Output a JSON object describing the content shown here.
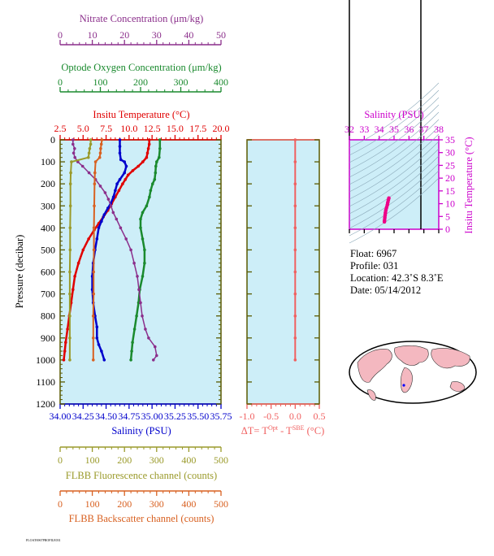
{
  "colors": {
    "nitrate": "#8b2f8b",
    "oxygen": "#1a8a2e",
    "temperature": "#e00000",
    "salinity": "#0000cc",
    "fluorescence": "#9a9a2a",
    "backscatter": "#d86020",
    "delta": "#f06060",
    "panel_bg": "#cdeef8",
    "axis_dark": "#5a5a00",
    "ts_magenta": "#cc00cc",
    "ts_points": "#ee0088",
    "land": "#f4b8c0"
  },
  "axes": {
    "nitrate": {
      "title": "Nitrate Concentration (μm/kg)",
      "ticks": [
        "0",
        "10",
        "20",
        "30",
        "40",
        "50"
      ],
      "range": [
        0,
        50
      ]
    },
    "oxygen": {
      "title": "Optode Oxygen Concentration (μm/kg)",
      "ticks": [
        "0",
        "100",
        "200",
        "300",
        "400"
      ],
      "range": [
        0,
        400
      ]
    },
    "temperature": {
      "title": "Insitu Temperature (°C)",
      "ticks": [
        "2.5",
        "5.0",
        "7.5",
        "10.0",
        "12.5",
        "15.0",
        "17.5",
        "20.0"
      ],
      "range": [
        2.5,
        20.0
      ]
    },
    "pressure": {
      "title": "Pressure (decibar)",
      "ticks": [
        "0",
        "100",
        "200",
        "300",
        "400",
        "500",
        "600",
        "700",
        "800",
        "900",
        "1000",
        "1100",
        "1200"
      ],
      "range": [
        0,
        1200
      ]
    },
    "salinity": {
      "title": "Salinity (PSU)",
      "ticks": [
        "34.00",
        "34.25",
        "34.50",
        "34.75",
        "35.00",
        "35.25",
        "35.50",
        "35.75"
      ],
      "range": [
        34.0,
        35.75
      ]
    },
    "fluorescence": {
      "title": "FLBB Fluorescence channel (counts)",
      "ticks": [
        "0",
        "100",
        "200",
        "300",
        "400",
        "500"
      ],
      "range": [
        0,
        500
      ]
    },
    "backscatter": {
      "title": "FLBB Backscatter channel (counts)",
      "ticks": [
        "0",
        "100",
        "200",
        "300",
        "400",
        "500"
      ],
      "range": [
        0,
        500
      ]
    },
    "delta": {
      "title_prefix": "ΔT= T",
      "sup1": "Opt",
      "mid": " - T",
      "sup2": "SBE",
      "suffix": " (°C)",
      "ticks": [
        "-1.0",
        "-0.5",
        "0.0",
        "0.5"
      ],
      "range": [
        -1.0,
        0.5
      ]
    },
    "ts_salinity": {
      "title": "Salinity (PSU)",
      "ticks": [
        "32",
        "33",
        "34",
        "35",
        "36",
        "37",
        "38"
      ],
      "range": [
        32,
        38
      ]
    },
    "ts_temperature": {
      "title": "Insitu Temperature (°C)",
      "ticks": [
        "0",
        "5",
        "10",
        "15",
        "20",
        "25",
        "30",
        "35"
      ],
      "range": [
        0,
        35
      ]
    }
  },
  "info": {
    "float": "Float:  6967",
    "profile": "Profile:  031",
    "location": "Location:  42.3˚S   8.3˚E",
    "date": "Date:  05/14/2012"
  },
  "footer": "FLOAT6967PROFILE031",
  "chart_data": {
    "type": "line",
    "y_axis": "pressure",
    "ylim": [
      0,
      1200
    ],
    "series": [
      {
        "key": "temperature",
        "pressure": [
          0,
          20,
          40,
          60,
          80,
          100,
          120,
          140,
          160,
          180,
          200,
          230,
          260,
          290,
          320,
          350,
          380,
          410,
          450,
          500,
          560,
          620,
          680,
          740,
          800,
          860,
          920,
          960,
          1000
        ],
        "values": [
          12.2,
          12.2,
          12.1,
          12.0,
          11.9,
          11.5,
          11.0,
          10.4,
          9.9,
          9.6,
          9.3,
          8.9,
          8.5,
          8.1,
          7.7,
          7.2,
          6.7,
          6.2,
          5.6,
          5.0,
          4.5,
          4.1,
          3.9,
          3.7,
          3.5,
          3.3,
          3.1,
          3.0,
          2.9
        ]
      },
      {
        "key": "salinity",
        "pressure": [
          0,
          30,
          60,
          90,
          100,
          120,
          150,
          180,
          200,
          230,
          260,
          290,
          310,
          340,
          370,
          400,
          450,
          500,
          560,
          620,
          680,
          740,
          800,
          850,
          900,
          930,
          960,
          1000
        ],
        "values": [
          34.65,
          34.65,
          34.65,
          34.66,
          34.7,
          34.72,
          34.7,
          34.65,
          34.62,
          34.6,
          34.58,
          34.55,
          34.52,
          34.48,
          34.45,
          34.42,
          34.4,
          34.38,
          34.36,
          34.35,
          34.35,
          34.36,
          34.38,
          34.4,
          34.4,
          34.42,
          34.45,
          34.48
        ]
      },
      {
        "key": "oxygen",
        "pressure": [
          0,
          40,
          80,
          100,
          120,
          150,
          180,
          200,
          230,
          260,
          300,
          330,
          360,
          400,
          450,
          500,
          560,
          620,
          680,
          740,
          800,
          860,
          920,
          960,
          1000
        ],
        "values": [
          248,
          248,
          246,
          240,
          238,
          237,
          235,
          230,
          225,
          222,
          215,
          205,
          200,
          200,
          205,
          210,
          210,
          205,
          198,
          195,
          190,
          185,
          180,
          178,
          176
        ]
      },
      {
        "key": "nitrate",
        "pressure": [
          0,
          20,
          40,
          60,
          80,
          100,
          120,
          150,
          180,
          210,
          240,
          270,
          300,
          330,
          360,
          400,
          450,
          500,
          560,
          620,
          680,
          740,
          800,
          860,
          900,
          940,
          980,
          1000
        ],
        "values": [
          4.0,
          4.0,
          4.5,
          4.2,
          4.6,
          5.5,
          7.0,
          9.0,
          11.0,
          12.5,
          14.0,
          15.0,
          15.8,
          16.5,
          17.5,
          18.8,
          20.5,
          22.0,
          23.0,
          24.0,
          24.5,
          25.0,
          25.5,
          26.5,
          27.5,
          29.5,
          30.0,
          29.0
        ]
      },
      {
        "key": "fluorescence",
        "pressure": [
          0,
          20,
          40,
          60,
          80,
          100,
          150,
          200,
          300,
          400,
          500,
          600,
          700,
          800,
          900,
          1000
        ],
        "values": [
          95,
          95,
          92,
          90,
          88,
          35,
          33,
          32,
          32,
          31,
          31,
          30,
          30,
          30,
          30,
          30
        ]
      },
      {
        "key": "backscatter",
        "pressure": [
          0,
          20,
          40,
          60,
          80,
          100,
          150,
          200,
          300,
          400,
          500,
          600,
          700,
          800,
          900,
          1000
        ],
        "values": [
          130,
          128,
          126,
          125,
          123,
          110,
          108,
          107,
          106,
          105,
          105,
          104,
          104,
          103,
          103,
          103
        ]
      },
      {
        "key": "delta",
        "pressure": [
          0,
          100,
          200,
          300,
          400,
          500,
          600,
          700,
          800,
          900,
          1000
        ],
        "values": [
          0.0,
          0.0,
          0.0,
          0.0,
          0.0,
          0.0,
          0.0,
          0.0,
          0.0,
          0.0,
          0.0
        ]
      },
      {
        "key": "ts",
        "salinity": [
          34.65,
          34.62,
          34.58,
          34.55,
          34.5,
          34.45,
          34.42,
          34.4,
          34.38,
          34.36,
          34.35
        ],
        "temperature": [
          12.2,
          11.5,
          10.5,
          9.5,
          8.5,
          7.5,
          6.5,
          5.5,
          4.5,
          3.5,
          2.9
        ]
      }
    ]
  }
}
